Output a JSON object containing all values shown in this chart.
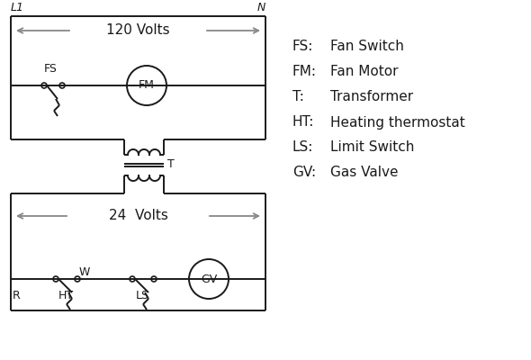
{
  "bg_color": "#ffffff",
  "line_color": "#1a1a1a",
  "arrow_color": "#888888",
  "legend": [
    [
      "FS:",
      "Fan Switch"
    ],
    [
      "FM:",
      "Fan Motor"
    ],
    [
      "T:",
      "Transformer"
    ],
    [
      "HT:",
      "Heating thermostat"
    ],
    [
      "LS:",
      "Limit Switch"
    ],
    [
      "GV:",
      "Gas Valve"
    ]
  ],
  "L1_label": "L1",
  "N_label": "N",
  "v120_label": "120 Volts",
  "v24_label": "24  Volts"
}
